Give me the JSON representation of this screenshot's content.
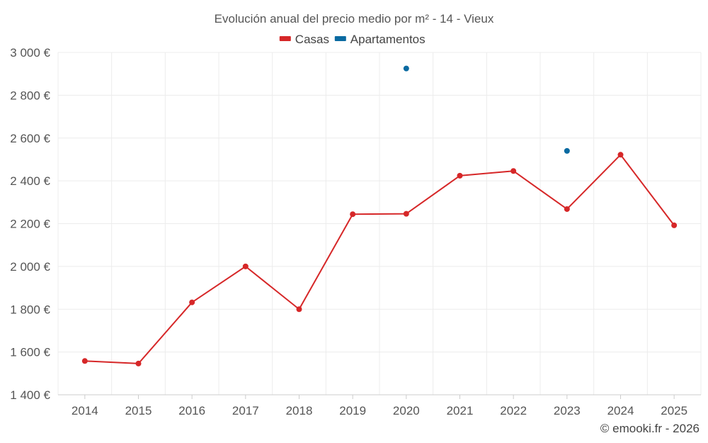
{
  "chart_data": {
    "type": "line",
    "title": "Evolución anual del precio medio por m² - 14 - Vieux",
    "xlabel": "",
    "ylabel": "",
    "categories": [
      "2014",
      "2015",
      "2016",
      "2017",
      "2018",
      "2019",
      "2020",
      "2021",
      "2022",
      "2023",
      "2024",
      "2025"
    ],
    "ylim": [
      1400,
      3000
    ],
    "yticks": [
      1400,
      1600,
      1800,
      2000,
      2200,
      2400,
      2600,
      2800,
      3000
    ],
    "ytick_labels": [
      "1 400 €",
      "1 600 €",
      "1 800 €",
      "2 000 €",
      "2 200 €",
      "2 400 €",
      "2 600 €",
      "2 800 €",
      "3 000 €"
    ],
    "grid": true,
    "legend_position": "top-center",
    "series": [
      {
        "name": "Casas",
        "color": "#d62728",
        "values": [
          1558,
          1546,
          1832,
          2000,
          1800,
          2244,
          2246,
          2424,
          2446,
          2268,
          2522,
          2192
        ]
      },
      {
        "name": "Apartamentos",
        "color": "#0a6aa1",
        "values": [
          null,
          null,
          null,
          null,
          null,
          null,
          2925,
          null,
          null,
          2540,
          null,
          null
        ]
      }
    ],
    "credit": "© emooki.fr - 2026"
  }
}
